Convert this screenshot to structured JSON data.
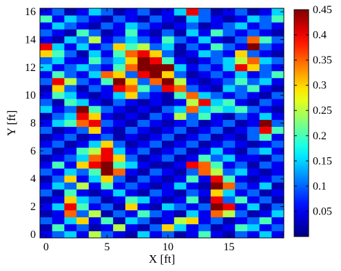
{
  "chart_data": {
    "type": "heatmap",
    "xlabel": "X [ft]",
    "ylabel": "Y [ft]",
    "x_ticks": [
      0,
      5,
      10,
      15
    ],
    "y_ticks": [
      0,
      2,
      4,
      6,
      8,
      10,
      12,
      14,
      16
    ],
    "xlim": [
      -0.5,
      19.5
    ],
    "ylim": [
      -0.25,
      16.25
    ],
    "colorbar": {
      "colormap": "jet",
      "range": [
        0,
        0.45
      ],
      "ticks": [
        "0.05",
        "0.1",
        "0.15",
        "0.2",
        "0.25",
        "0.3",
        "0.35",
        "0.4",
        "0.45"
      ]
    },
    "grid": {
      "cols": 20,
      "rows": 33,
      "x0": 0,
      "dx": 1,
      "y0": 0,
      "dy": 0.5,
      "note_rows_bottom_to_top": "values[0] is y=0",
      "values": [
        [
          0.05,
          0.1,
          0.15,
          0.05,
          0.25,
          0.1,
          0.05,
          0.02,
          0.15,
          0.05,
          0.1,
          0.02,
          0.05,
          0.2,
          0.05,
          0.02,
          0.1,
          0.05,
          0.15,
          0.05
        ],
        [
          0.02,
          0.2,
          0.05,
          0.1,
          0.02,
          0.05,
          0.25,
          0.05,
          0.02,
          0.1,
          0.3,
          0.15,
          0.05,
          0.1,
          0.02,
          0.05,
          0.2,
          0.15,
          0.05,
          0.1
        ],
        [
          0.1,
          0.05,
          0.15,
          0.3,
          0.05,
          0.2,
          0.02,
          0.15,
          0.1,
          0.02,
          0.05,
          0.25,
          0.3,
          0.05,
          0.1,
          0.02,
          0.05,
          0.1,
          0.2,
          0.05
        ],
        [
          0.02,
          0.05,
          0.35,
          0.1,
          0.25,
          0.02,
          0.1,
          0.05,
          0.2,
          0.1,
          0.05,
          0.02,
          0.15,
          0.05,
          0.35,
          0.25,
          0.1,
          0.02,
          0.05,
          0.15
        ],
        [
          0.05,
          0.15,
          0.4,
          0.2,
          0.05,
          0.1,
          0.02,
          0.3,
          0.05,
          0.02,
          0.15,
          0.1,
          0.05,
          0.1,
          0.45,
          0.4,
          0.05,
          0.15,
          0.02,
          0.1
        ],
        [
          0.02,
          0.05,
          0.3,
          0.15,
          0.1,
          0.02,
          0.05,
          0.2,
          0.15,
          0.05,
          0.02,
          0.05,
          0.2,
          0.02,
          0.4,
          0.1,
          0.2,
          0.05,
          0.1,
          0.02
        ],
        [
          0.1,
          0.02,
          0.2,
          0.05,
          0.02,
          0.05,
          0.15,
          0.05,
          0.02,
          0.1,
          0.05,
          0.02,
          0.1,
          0.05,
          0.3,
          0.15,
          0.05,
          0.1,
          0.02,
          0.05
        ],
        [
          0.05,
          0.15,
          0.1,
          0.25,
          0.05,
          0.2,
          0.05,
          0.1,
          0.05,
          0.02,
          0.05,
          0.15,
          0.05,
          0.02,
          0.45,
          0.35,
          0.1,
          0.05,
          0.15,
          0.02
        ],
        [
          0.02,
          0.1,
          0.3,
          0.05,
          0.15,
          0.3,
          0.1,
          0.02,
          0.1,
          0.05,
          0.02,
          0.05,
          0.2,
          0.05,
          0.4,
          0.2,
          0.05,
          0.02,
          0.05,
          0.1
        ],
        [
          0.1,
          0.05,
          0.15,
          0.1,
          0.2,
          0.45,
          0.35,
          0.05,
          0.02,
          0.1,
          0.05,
          0.02,
          0.1,
          0.35,
          0.25,
          0.1,
          0.15,
          0.05,
          0.02,
          0.05
        ],
        [
          0.05,
          0.2,
          0.05,
          0.3,
          0.4,
          0.45,
          0.2,
          0.15,
          0.05,
          0.02,
          0.02,
          0.05,
          0.4,
          0.35,
          0.2,
          0.05,
          0.1,
          0.02,
          0.1,
          0.05
        ],
        [
          0.02,
          0.05,
          0.1,
          0.15,
          0.35,
          0.4,
          0.3,
          0.1,
          0.02,
          0.05,
          0.1,
          0.02,
          0.05,
          0.2,
          0.1,
          0.15,
          0.05,
          0.05,
          0.02,
          0.1
        ],
        [
          0.1,
          0.02,
          0.05,
          0.2,
          0.25,
          0.4,
          0.15,
          0.05,
          0.1,
          0.02,
          0.05,
          0.1,
          0.02,
          0.05,
          0.15,
          0.05,
          0.02,
          0.1,
          0.15,
          0.05
        ],
        [
          0.05,
          0.1,
          0.02,
          0.05,
          0.15,
          0.3,
          0.1,
          0.02,
          0.05,
          0.1,
          0.02,
          0.05,
          0.1,
          0.02,
          0.05,
          0.1,
          0.05,
          0.02,
          0.05,
          0.1
        ],
        [
          0.02,
          0.05,
          0.1,
          0.02,
          0.05,
          0.1,
          0.02,
          0.05,
          0.02,
          0.05,
          0.1,
          0.02,
          0.05,
          0.1,
          0.02,
          0.05,
          0.02,
          0.1,
          0.2,
          0.05
        ],
        [
          0.1,
          0.02,
          0.05,
          0.1,
          0.3,
          0.05,
          0.02,
          0.1,
          0.05,
          0.02,
          0.05,
          0.1,
          0.02,
          0.05,
          0.1,
          0.02,
          0.05,
          0.1,
          0.4,
          0.2
        ],
        [
          0.05,
          0.15,
          0.2,
          0.35,
          0.4,
          0.1,
          0.05,
          0.02,
          0.1,
          0.05,
          0.02,
          0.05,
          0.1,
          0.02,
          0.05,
          0.1,
          0.02,
          0.05,
          0.45,
          0.1
        ],
        [
          0.02,
          0.1,
          0.15,
          0.4,
          0.3,
          0.05,
          0.02,
          0.05,
          0.02,
          0.1,
          0.05,
          0.25,
          0.1,
          0.2,
          0.05,
          0.02,
          0.1,
          0.05,
          0.15,
          0.05
        ],
        [
          0.15,
          0.05,
          0.1,
          0.45,
          0.2,
          0.1,
          0.05,
          0.02,
          0.05,
          0.02,
          0.1,
          0.15,
          0.35,
          0.15,
          0.2,
          0.15,
          0.2,
          0.1,
          0.05,
          0.02
        ],
        [
          0.1,
          0.02,
          0.2,
          0.15,
          0.05,
          0.02,
          0.1,
          0.05,
          0.02,
          0.05,
          0.02,
          0.05,
          0.25,
          0.4,
          0.15,
          0.2,
          0.05,
          0.02,
          0.1,
          0.05
        ],
        [
          0.05,
          0.2,
          0.15,
          0.05,
          0.02,
          0.05,
          0.15,
          0.3,
          0.1,
          0.05,
          0.02,
          0.2,
          0.35,
          0.15,
          0.1,
          0.05,
          0.1,
          0.05,
          0.02,
          0.1
        ],
        [
          0.02,
          0.3,
          0.1,
          0.02,
          0.1,
          0.05,
          0.4,
          0.35,
          0.2,
          0.1,
          0.4,
          0.35,
          0.1,
          0.05,
          0.02,
          0.15,
          0.1,
          0.2,
          0.05,
          0.02
        ],
        [
          0.1,
          0.4,
          0.25,
          0.1,
          0.05,
          0.2,
          0.45,
          0.3,
          0.1,
          0.35,
          0.45,
          0.25,
          0.05,
          0.02,
          0.05,
          0.1,
          0.2,
          0.1,
          0.15,
          0.05
        ],
        [
          0.05,
          0.2,
          0.1,
          0.05,
          0.15,
          0.35,
          0.3,
          0.1,
          0.4,
          0.45,
          0.3,
          0.1,
          0.02,
          0.05,
          0.1,
          0.05,
          0.15,
          0.05,
          0.1,
          0.2
        ],
        [
          0.15,
          0.05,
          0.1,
          0.15,
          0.1,
          0.05,
          0.2,
          0.35,
          0.45,
          0.45,
          0.45,
          0.15,
          0.05,
          0.1,
          0.05,
          0.15,
          0.4,
          0.3,
          0.1,
          0.05
        ],
        [
          0.1,
          0.15,
          0.05,
          0.05,
          0.2,
          0.1,
          0.15,
          0.3,
          0.45,
          0.4,
          0.2,
          0.05,
          0.02,
          0.05,
          0.1,
          0.15,
          0.25,
          0.35,
          0.15,
          0.1
        ],
        [
          0.3,
          0.2,
          0.1,
          0.02,
          0.15,
          0.05,
          0.2,
          0.35,
          0.4,
          0.3,
          0.1,
          0.02,
          0.05,
          0.15,
          0.1,
          0.05,
          0.3,
          0.1,
          0.05,
          0.02
        ],
        [
          0.4,
          0.15,
          0.05,
          0.15,
          0.05,
          0.1,
          0.3,
          0.2,
          0.25,
          0.1,
          0.15,
          0.02,
          0.1,
          0.05,
          0.2,
          0.1,
          0.05,
          0.45,
          0.1,
          0.05
        ],
        [
          0.05,
          0.02,
          0.15,
          0.1,
          0.25,
          0.05,
          0.1,
          0.15,
          0.1,
          0.05,
          0.2,
          0.1,
          0.05,
          0.15,
          0.05,
          0.02,
          0.1,
          0.35,
          0.2,
          0.1
        ],
        [
          0.1,
          0.05,
          0.02,
          0.2,
          0.1,
          0.02,
          0.05,
          0.2,
          0.05,
          0.02,
          0.1,
          0.02,
          0.15,
          0.05,
          0.2,
          0.1,
          0.05,
          0.1,
          0.05,
          0.02
        ],
        [
          0.05,
          0.15,
          0.1,
          0.05,
          0.02,
          0.1,
          0.05,
          0.15,
          0.1,
          0.05,
          0.02,
          0.05,
          0.1,
          0.02,
          0.05,
          0.1,
          0.15,
          0.05,
          0.1,
          0.05
        ],
        [
          0.2,
          0.05,
          0.15,
          0.1,
          0.05,
          0.02,
          0.1,
          0.05,
          0.02,
          0.1,
          0.05,
          0.02,
          0.15,
          0.1,
          0.05,
          0.02,
          0.05,
          0.15,
          0.1,
          0.2
        ],
        [
          0.05,
          0.1,
          0.02,
          0.05,
          0.15,
          0.1,
          0.02,
          0.05,
          0.1,
          0.02,
          0.05,
          0.15,
          0.4,
          0.1,
          0.02,
          0.05,
          0.1,
          0.02,
          0.05,
          0.15
        ]
      ]
    }
  }
}
